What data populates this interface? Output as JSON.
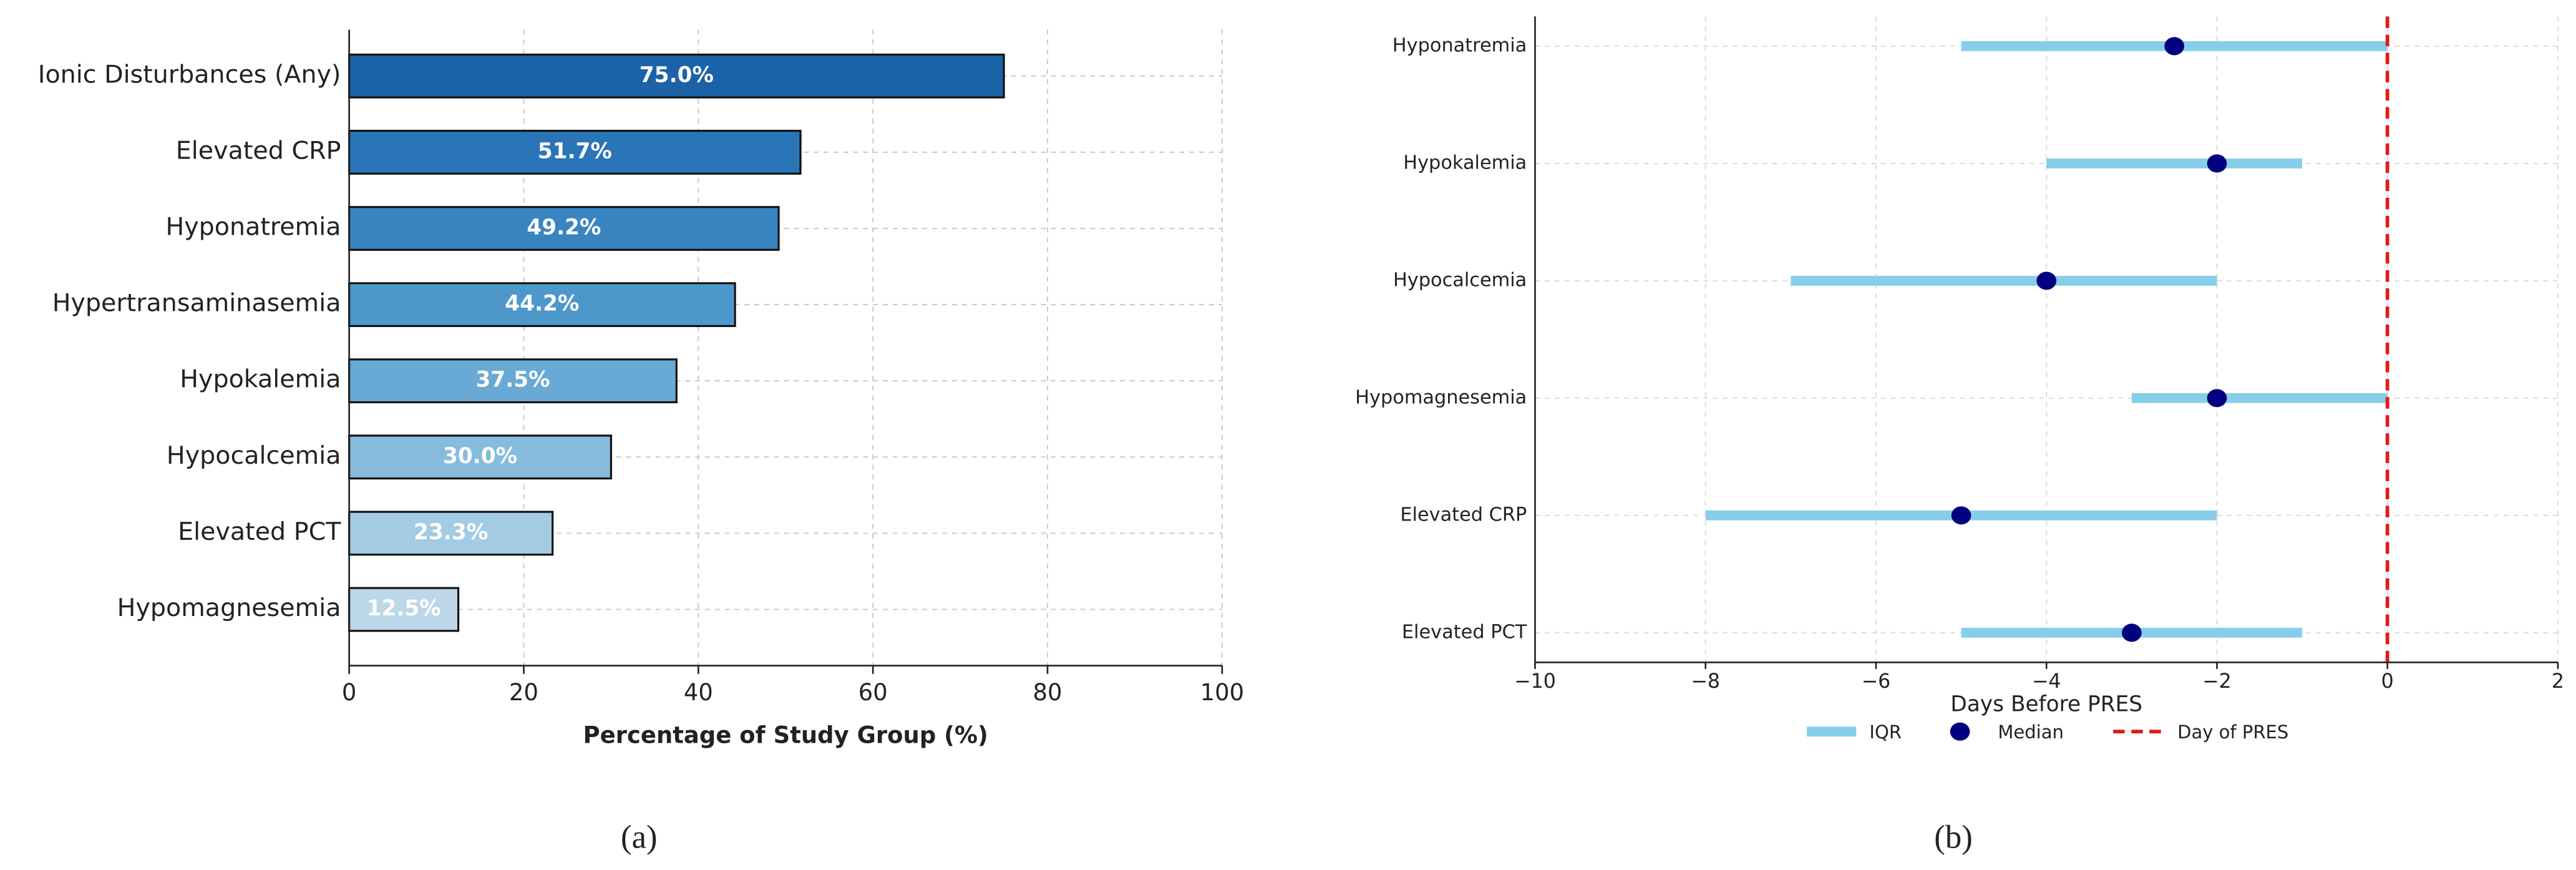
{
  "chart_data": [
    {
      "type": "bar",
      "orientation": "horizontal",
      "categories": [
        "Ionic Disturbances (Any)",
        "Elevated CRP",
        "Hyponatremia",
        "Hypertransaminasemia",
        "Hypokalemia",
        "Hypocalcemia",
        "Elevated PCT",
        "Hypomagnesemia"
      ],
      "values": [
        75.0,
        51.7,
        49.2,
        44.2,
        37.5,
        30.0,
        23.3,
        12.5
      ],
      "value_labels": [
        "75.0%",
        "51.7%",
        "49.2%",
        "44.2%",
        "37.5%",
        "30.0%",
        "23.3%",
        "12.5%"
      ],
      "colors": [
        "#1b62a8",
        "#2a75b8",
        "#3985c1",
        "#4e97cb",
        "#68a9d5",
        "#86bbde",
        "#a4cbe4",
        "#bcd7ea"
      ],
      "xlabel": "Percentage of Study Group (%)",
      "xlim": [
        0,
        100
      ],
      "xticks": [
        0,
        20,
        40,
        60,
        80,
        100
      ],
      "grid": true,
      "caption": "(a)"
    },
    {
      "type": "interval",
      "categories": [
        "Hyponatremia",
        "Hypokalemia",
        "Hypocalcemia",
        "Hypomagnesemia",
        "Elevated CRP",
        "Elevated PCT"
      ],
      "series": [
        {
          "name": "IQR",
          "color": "#87ceeb",
          "low": [
            -5,
            -4,
            -7,
            -3,
            -8,
            -5
          ],
          "high": [
            0,
            -1,
            -2,
            0,
            -2,
            -1
          ]
        },
        {
          "name": "Median",
          "color": "#000080",
          "values": [
            -2.5,
            -2,
            -4,
            -2,
            -5,
            -3
          ]
        }
      ],
      "reference_line": {
        "value": 0,
        "label": "Day of PRES",
        "color": "#e31a1c"
      },
      "xlabel": "Days Before PRES",
      "xlim": [
        -10,
        2
      ],
      "xticks": [
        {
          "value": -10,
          "label": "−10"
        },
        {
          "value": -8,
          "label": "−8"
        },
        {
          "value": -6,
          "label": "−6"
        },
        {
          "value": -4,
          "label": "−4"
        },
        {
          "value": -2,
          "label": "−2"
        },
        0,
        2
      ],
      "grid": true,
      "caption": "(b)"
    }
  ]
}
